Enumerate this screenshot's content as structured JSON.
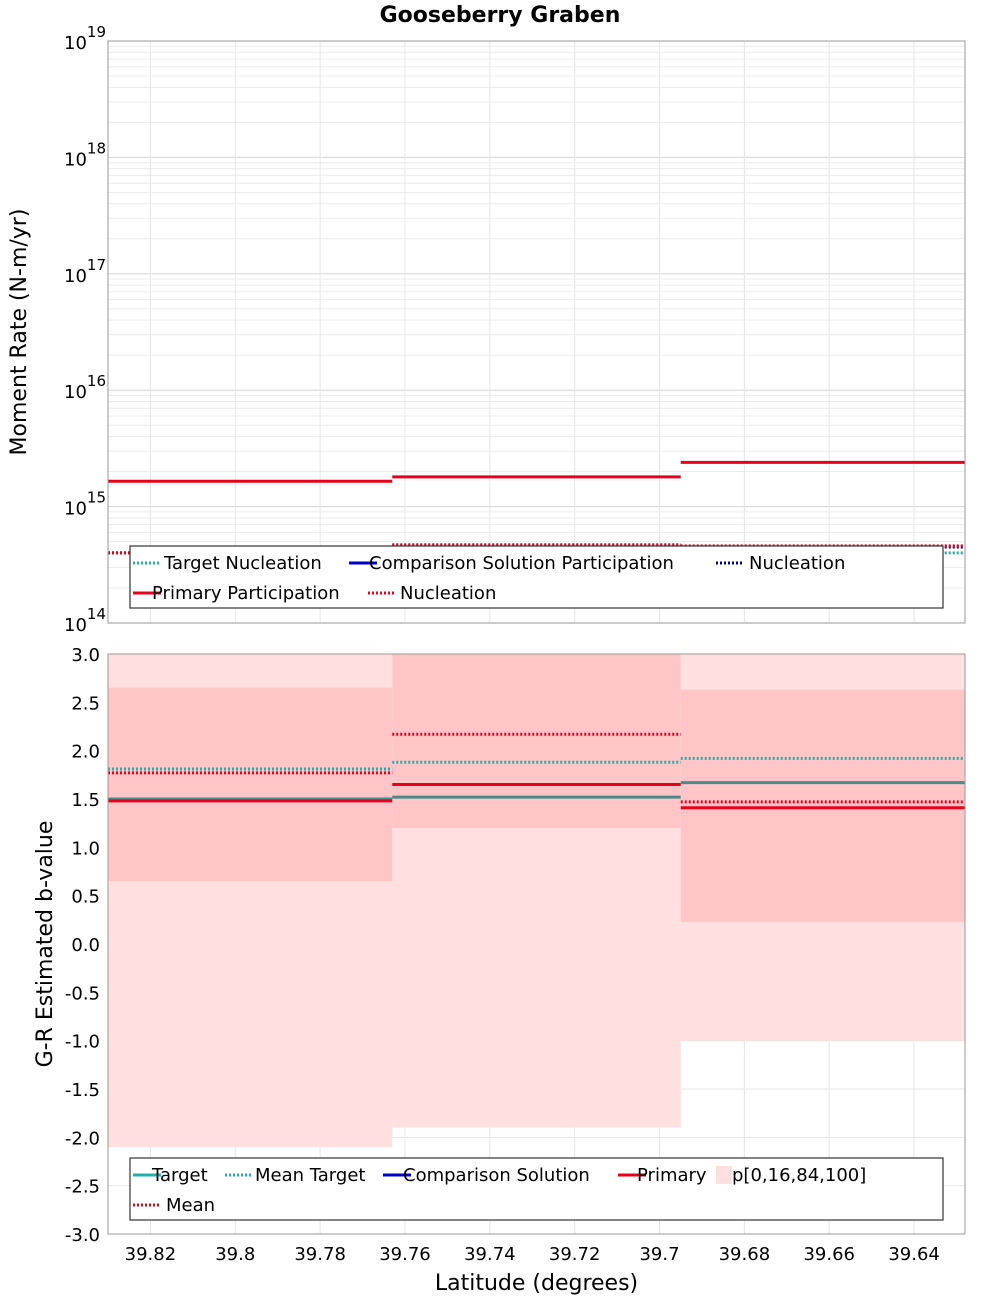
{
  "chart_data": [
    {
      "type": "line",
      "title": "Gooseberry Graben",
      "ylabel": "Moment Rate (N-m/yr)",
      "xlabel": "",
      "yscale": "log",
      "ylim": [
        100000000000000.0,
        1e+19
      ],
      "xlim": [
        39.83,
        39.628
      ],
      "x_reversed": true,
      "y_ticks": [
        {
          "base": "10",
          "exp": "14",
          "value": 100000000000000.0
        },
        {
          "base": "10",
          "exp": "15",
          "value": 1000000000000000.0
        },
        {
          "base": "10",
          "exp": "16",
          "value": 1e+16
        },
        {
          "base": "10",
          "exp": "17",
          "value": 1e+17
        },
        {
          "base": "10",
          "exp": "18",
          "value": 1e+18
        },
        {
          "base": "10",
          "exp": "19",
          "value": 1e+19
        }
      ],
      "segments_x": [
        [
          39.83,
          39.763
        ],
        [
          39.763,
          39.695
        ],
        [
          39.695,
          39.628
        ]
      ],
      "series": [
        {
          "name": "Target Nucleation",
          "color": "#20b2aa",
          "style": "dotted",
          "values": [
            400000000000000.0,
            400000000000000.0,
            400000000000000.0
          ]
        },
        {
          "name": "Comparison Solution Participation",
          "color": "#0000cc",
          "style": "solid",
          "values": [
            null,
            null,
            null
          ]
        },
        {
          "name": "Nucleation",
          "color": "#00008b",
          "style": "dotted",
          "values": [
            400000000000000.0,
            460000000000000.0,
            450000000000000.0
          ]
        },
        {
          "name": "Primary Participation",
          "color": "#e8001c",
          "style": "solid",
          "values": [
            1650000000000000.0,
            1800000000000000.0,
            2400000000000000.0
          ]
        },
        {
          "name": "Nucleation",
          "color": "#e8001c",
          "style": "dotted",
          "values": [
            400000000000000.0,
            470000000000000.0,
            460000000000000.0
          ]
        }
      ],
      "grid": true,
      "legend": "bottom"
    },
    {
      "type": "line",
      "title": "",
      "ylabel": "G-R Estimated b-value",
      "xlabel": "Latitude (degrees)",
      "ylim": [
        -3.0,
        3.0
      ],
      "xlim": [
        39.83,
        39.628
      ],
      "x_reversed": true,
      "y_ticks": [
        "-3.0",
        "-2.5",
        "-2.0",
        "-1.5",
        "-1.0",
        "-0.5",
        "0.0",
        "0.5",
        "1.0",
        "1.5",
        "2.0",
        "2.5",
        "3.0"
      ],
      "x_ticks": [
        "39.82",
        "39.8",
        "39.78",
        "39.76",
        "39.74",
        "39.72",
        "39.7",
        "39.68",
        "39.66",
        "39.64"
      ],
      "segments_x": [
        [
          39.83,
          39.763
        ],
        [
          39.763,
          39.695
        ],
        [
          39.695,
          39.628
        ]
      ],
      "bands": {
        "name": "p[0,16,84,100]",
        "outer_color": "#ffdfe0",
        "inner_color": "#ffc5c7",
        "p0": [
          -2.1,
          -1.9,
          -1.0
        ],
        "p16": [
          0.65,
          1.2,
          0.23
        ],
        "p84": [
          2.65,
          3.0,
          2.63
        ],
        "p100": [
          3.0,
          3.0,
          3.0
        ]
      },
      "series": [
        {
          "name": "Target",
          "color": "#20b2aa",
          "style": "solid",
          "values": [
            1.5,
            1.52,
            1.67
          ]
        },
        {
          "name": "Mean Target",
          "color": "#20b2aa",
          "style": "dotted",
          "values": [
            1.81,
            1.88,
            1.92
          ]
        },
        {
          "name": "Comparison Solution",
          "color": "#0000cc",
          "style": "solid",
          "values": [
            null,
            null,
            null
          ]
        },
        {
          "name": "Primary",
          "color": "#e8001c",
          "style": "solid",
          "values": [
            1.48,
            1.65,
            1.41
          ]
        },
        {
          "name": "Mean",
          "color": "#e8001c",
          "style": "dotted",
          "values": [
            1.77,
            2.17,
            1.47
          ]
        }
      ],
      "grid": true,
      "legend": "bottom"
    }
  ]
}
